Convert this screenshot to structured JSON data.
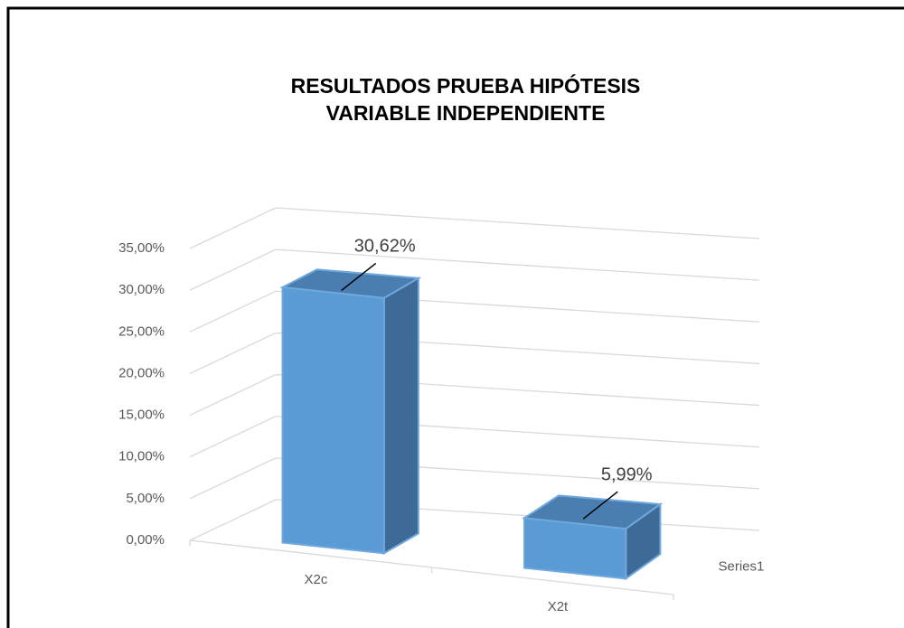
{
  "chart_data": {
    "type": "bar3d",
    "title": [
      "RESULTADOS PRUEBA HIPÓTESIS",
      "VARIABLE INDEPENDIENTE"
    ],
    "categories": [
      "X2c",
      "X2t"
    ],
    "series": [
      {
        "name": "Series1",
        "color": "#5b9bd5",
        "values": [
          30.62,
          5.99
        ],
        "value_labels": [
          "30,62%",
          "5,99%"
        ]
      }
    ],
    "ylim": [
      0,
      35
    ],
    "yticks": [
      {
        "value": 0,
        "label": "0,00%"
      },
      {
        "value": 5,
        "label": "5,00%"
      },
      {
        "value": 10,
        "label": "10,00%"
      },
      {
        "value": 15,
        "label": "15,00%"
      },
      {
        "value": 20,
        "label": "20,00%"
      },
      {
        "value": 25,
        "label": "25,00%"
      },
      {
        "value": 30,
        "label": "30,00%"
      },
      {
        "value": 35,
        "label": "35,00%"
      }
    ],
    "grid": true
  }
}
